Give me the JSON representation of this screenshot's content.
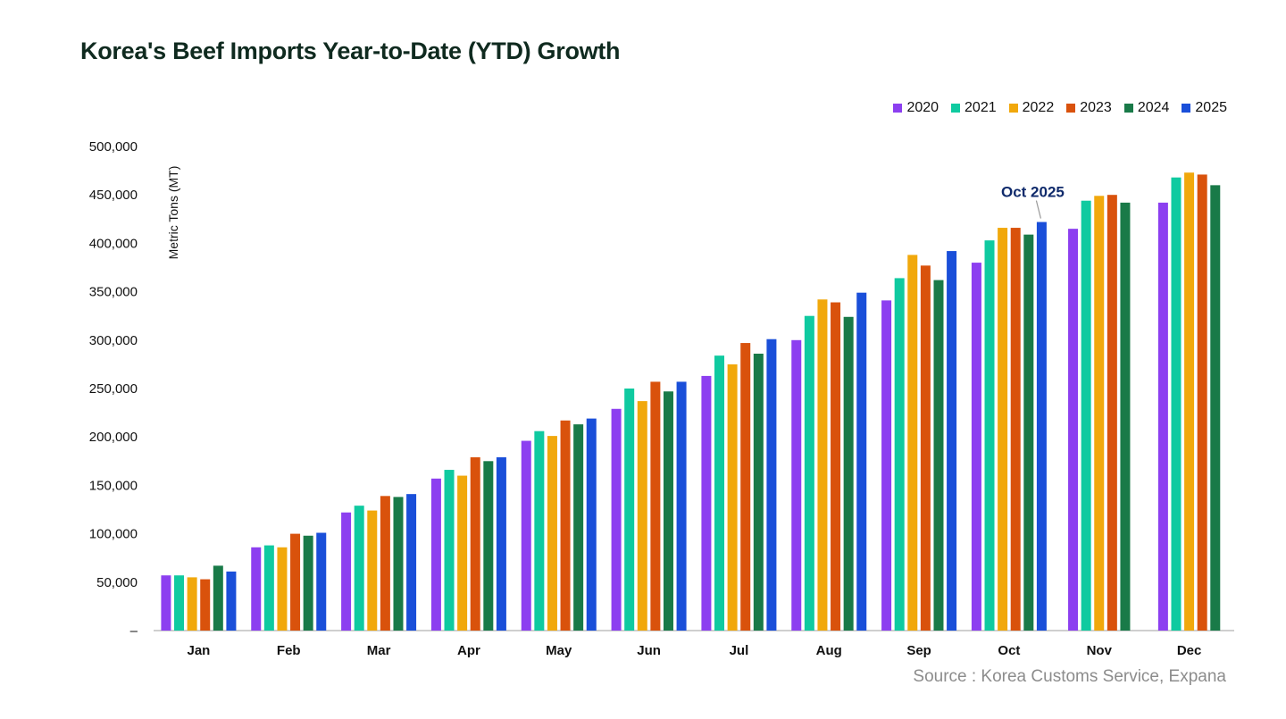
{
  "title": "Korea's Beef Imports Year-to-Date (YTD) Growth",
  "source": "Source : Korea Customs Service, Expana",
  "colors": {
    "2020": "#8c3ff0",
    "2021": "#0fcaa0",
    "2022": "#f1a80c",
    "2023": "#d9520c",
    "2024": "#197a48",
    "2025": "#1a4fd9"
  },
  "chart_data": {
    "type": "bar",
    "title": "Korea's Beef Imports Year-to-Date (YTD) Growth",
    "ylabel": "Metric Tons (MT)",
    "xlabel": "",
    "ylim": [
      0,
      500000
    ],
    "yticks": [
      0,
      50000,
      100000,
      150000,
      200000,
      250000,
      300000,
      350000,
      400000,
      450000,
      500000
    ],
    "ytick_labels": [
      "–",
      "50,000",
      "100,000",
      "150,000",
      "200,000",
      "250,000",
      "300,000",
      "350,000",
      "400,000",
      "450,000",
      "500,000"
    ],
    "grid": false,
    "legend_position": "top-right",
    "categories": [
      "Jan",
      "Feb",
      "Mar",
      "Apr",
      "May",
      "Jun",
      "Jul",
      "Aug",
      "Sep",
      "Oct",
      "Nov",
      "Dec"
    ],
    "series": [
      {
        "name": "2020",
        "values": [
          57000,
          86000,
          122000,
          157000,
          196000,
          229000,
          263000,
          300000,
          341000,
          380000,
          415000,
          442000
        ]
      },
      {
        "name": "2021",
        "values": [
          57000,
          88000,
          129000,
          166000,
          206000,
          250000,
          284000,
          325000,
          364000,
          403000,
          444000,
          468000
        ]
      },
      {
        "name": "2022",
        "values": [
          55000,
          86000,
          124000,
          160000,
          201000,
          237000,
          275000,
          342000,
          388000,
          416000,
          449000,
          473000
        ]
      },
      {
        "name": "2023",
        "values": [
          53000,
          100000,
          139000,
          179000,
          217000,
          257000,
          297000,
          339000,
          377000,
          416000,
          450000,
          471000
        ]
      },
      {
        "name": "2024",
        "values": [
          67000,
          98000,
          138000,
          175000,
          213000,
          247000,
          286000,
          324000,
          362000,
          409000,
          442000,
          460000
        ]
      },
      {
        "name": "2025",
        "values": [
          61000,
          101000,
          141000,
          179000,
          219000,
          257000,
          301000,
          349000,
          392000,
          422000,
          null,
          null
        ]
      }
    ],
    "annotations": [
      {
        "text": "Oct 2025",
        "category": "Oct",
        "series": "2025",
        "value": 422000
      }
    ]
  }
}
